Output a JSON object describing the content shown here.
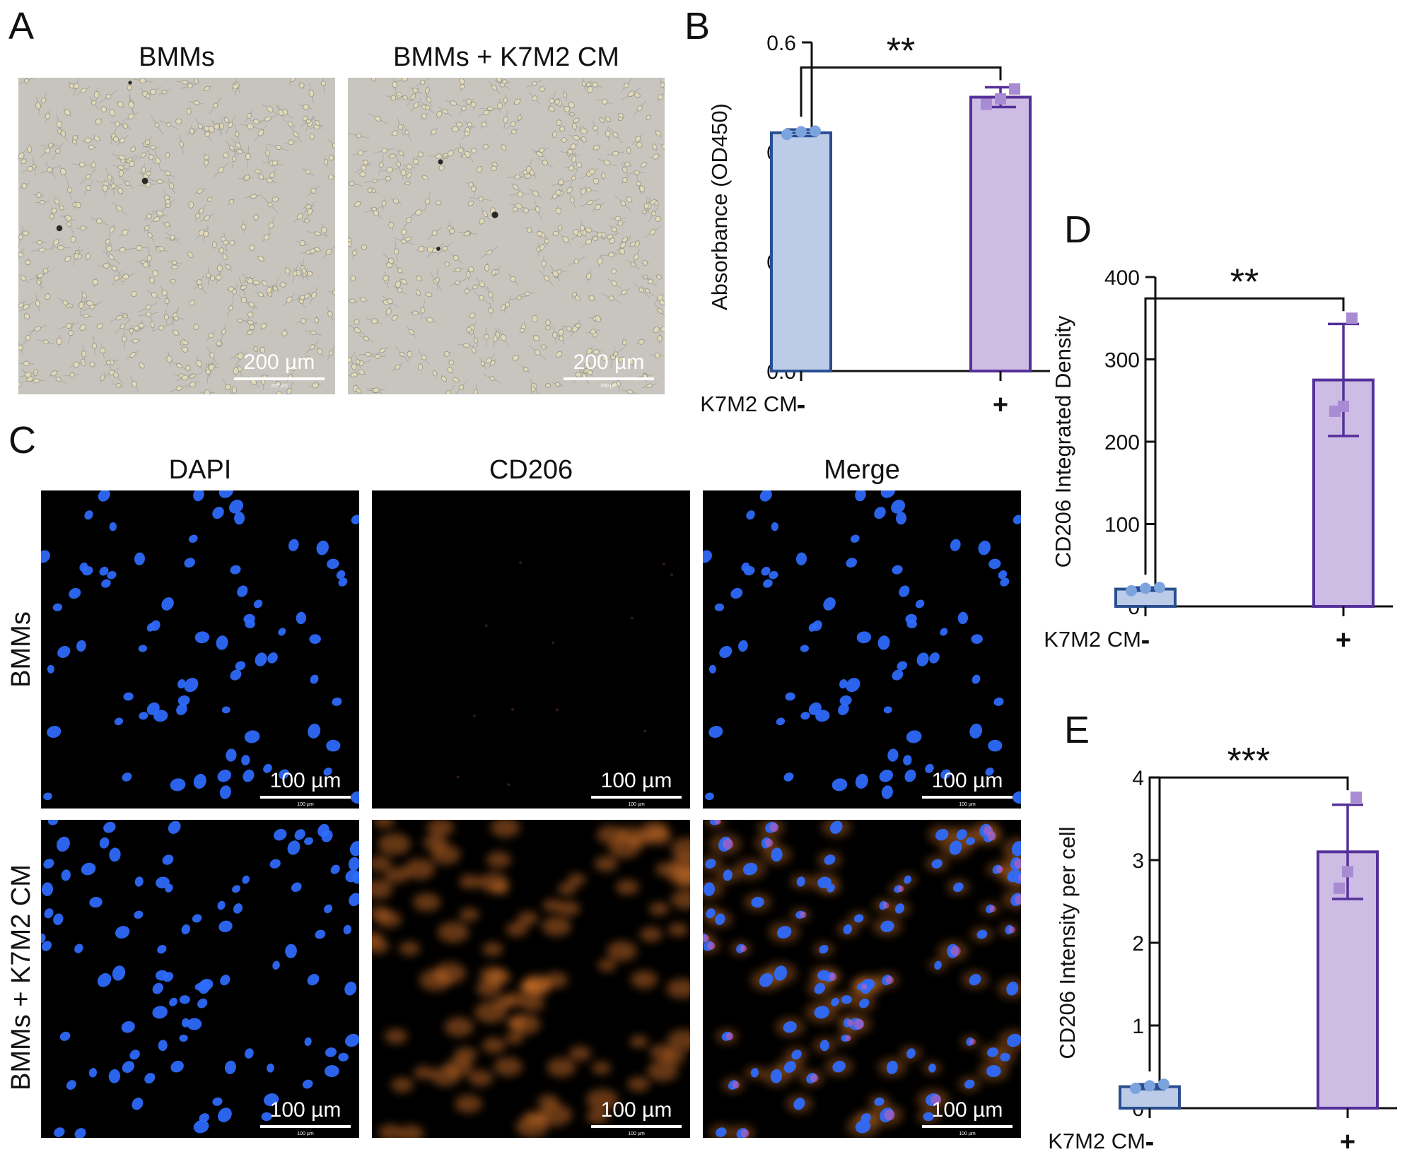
{
  "panel_letters": {
    "a": "A",
    "b": "B",
    "c": "C",
    "d": "D",
    "e": "E"
  },
  "panel_a": {
    "titles": [
      "BMMs",
      "BMMs + K7M2 CM"
    ],
    "scale_label": "200 µm",
    "scale_tiny": "200 µm"
  },
  "panel_c": {
    "col_titles": [
      "DAPI",
      "CD206",
      "Merge"
    ],
    "row_labels": [
      "BMMs",
      "BMMs + K7M2 CM"
    ],
    "scale_label": "100 µm",
    "scale_tiny": "100 µm"
  },
  "colors": {
    "minus_fill": "#bccbe8",
    "minus_edge": "#2a4f8f",
    "minus_point": "#7ba3dd",
    "plus_fill": "#cdbce3",
    "plus_edge": "#55309a",
    "plus_point": "#a98bd3",
    "dapi": "#2f6cff",
    "cd206": "#e07a2a"
  },
  "chart_data": [
    {
      "panel": "B",
      "type": "bar",
      "ylabel": "Absorbance (OD450)",
      "xlabel": "K7M2 CM",
      "categories": [
        "-",
        "+"
      ],
      "values": [
        0.435,
        0.5
      ],
      "sd": [
        0.006,
        0.018
      ],
      "points": [
        [
          0.432,
          0.437,
          0.438
        ],
        [
          0.487,
          0.497,
          0.515
        ]
      ],
      "ylim": [
        0,
        0.6
      ],
      "yticks": [
        0.0,
        0.2,
        0.4,
        0.6
      ],
      "ytick_labels": [
        "0.0",
        "0.2",
        "0.4",
        "0.6"
      ],
      "significance": "**"
    },
    {
      "panel": "D",
      "type": "bar",
      "ylabel": "CD206 Integrated Density",
      "xlabel": "K7M2 CM",
      "categories": [
        "-",
        "+"
      ],
      "values": [
        21,
        275
      ],
      "sd": [
        2,
        68
      ],
      "points": [
        [
          19,
          22,
          23
        ],
        [
          237,
          243,
          350
        ]
      ],
      "ylim": [
        0,
        400
      ],
      "yticks": [
        0,
        100,
        200,
        300,
        400
      ],
      "ytick_labels": [
        "0",
        "100",
        "200",
        "300",
        "400"
      ],
      "significance": "**"
    },
    {
      "panel": "E",
      "type": "bar",
      "ylabel": "CD206 Intensity per cell",
      "xlabel": "K7M2 CM",
      "categories": [
        "-",
        "+"
      ],
      "values": [
        0.26,
        3.1
      ],
      "sd": [
        0.03,
        0.57
      ],
      "points": [
        [
          0.24,
          0.27,
          0.29
        ],
        [
          2.66,
          2.86,
          3.76
        ]
      ],
      "ylim": [
        0,
        4
      ],
      "yticks": [
        0,
        1,
        2,
        3,
        4
      ],
      "ytick_labels": [
        "0",
        "1",
        "2",
        "3",
        "4"
      ],
      "significance": "***"
    }
  ]
}
